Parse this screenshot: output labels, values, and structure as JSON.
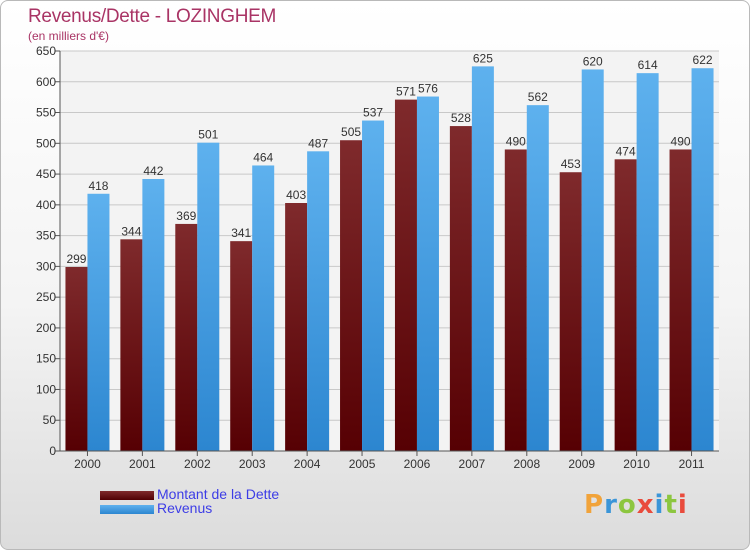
{
  "title": "Revenus/Dette - LOZINGHEM",
  "subtitle": "(en milliers d'€)",
  "legend": {
    "debt_label": "Montant de la Dette",
    "revenue_label": "Revenus"
  },
  "logo_text": "Proxiti",
  "colors": {
    "title": "#a93465",
    "debt": "#6b1416",
    "revenue": "#4aa5e8",
    "legend_text": "#3d3de6"
  },
  "chart_data": {
    "type": "bar",
    "title": "Revenus/Dette - LOZINGHEM",
    "subtitle": "(en milliers d'€)",
    "xlabel": "",
    "ylabel": "",
    "categories": [
      "2000",
      "2001",
      "2002",
      "2003",
      "2004",
      "2005",
      "2006",
      "2007",
      "2008",
      "2009",
      "2010",
      "2011"
    ],
    "series": [
      {
        "name": "Montant de la Dette",
        "values": [
          299,
          344,
          369,
          341,
          403,
          505,
          571,
          528,
          490,
          453,
          474,
          490
        ]
      },
      {
        "name": "Revenus",
        "values": [
          418,
          442,
          501,
          464,
          487,
          537,
          576,
          625,
          562,
          620,
          614,
          622
        ]
      }
    ],
    "ylim": [
      0,
      650
    ],
    "yticks": [
      0,
      50,
      100,
      150,
      200,
      250,
      300,
      350,
      400,
      450,
      500,
      550,
      600,
      650
    ],
    "grid": true,
    "legend_position": "bottom-left"
  }
}
